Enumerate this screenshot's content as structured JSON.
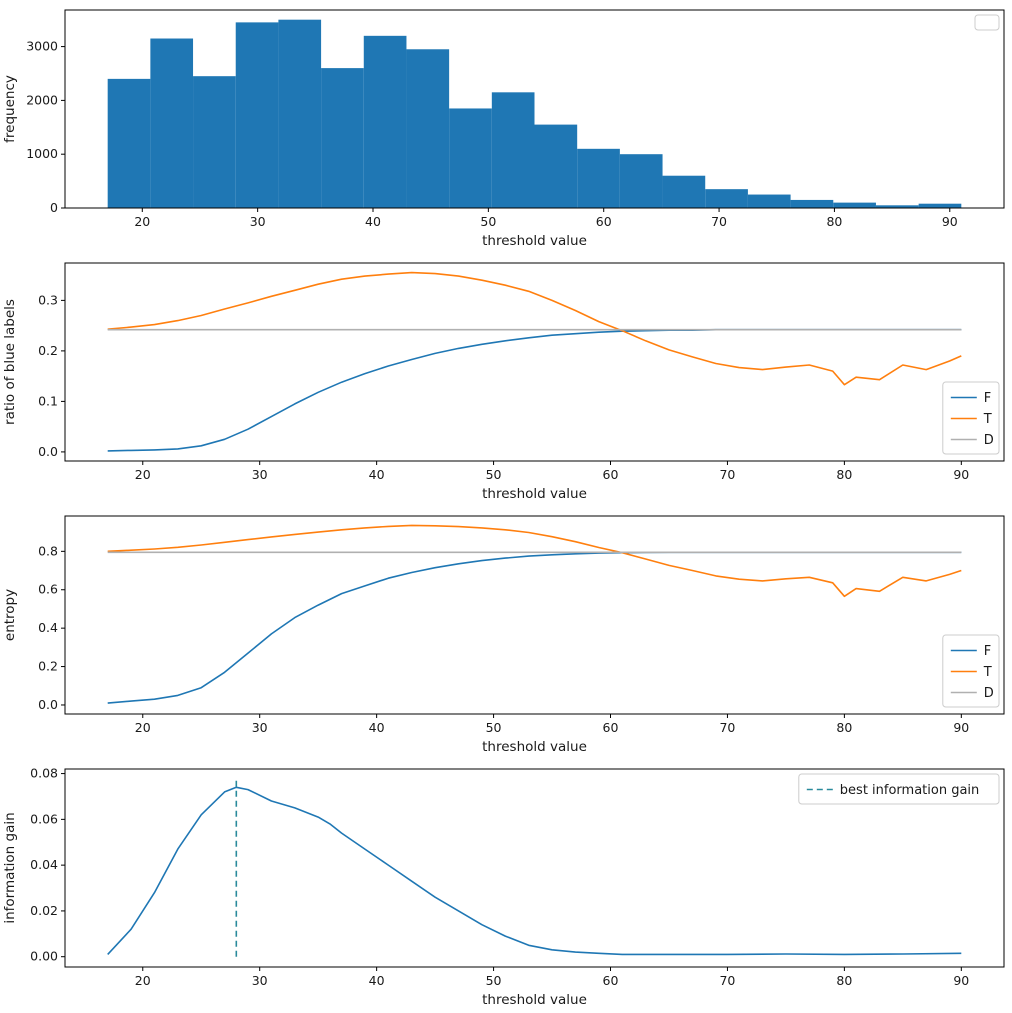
{
  "figure": {
    "background": "#ffffff"
  },
  "colors": {
    "blue": "#1f77b4",
    "orange": "#ff7f0e",
    "gray": "#b0b0b0",
    "teal": "#2a8a9c",
    "text": "#1a1a1a",
    "spine": "#000000",
    "legend_border": "#cccccc"
  },
  "chart_data": [
    {
      "type": "bar",
      "title": "",
      "xlabel": "threshold value",
      "ylabel": "frequency",
      "bin_start": 17,
      "bin_width": 3.7,
      "values": [
        2400,
        3150,
        2450,
        3450,
        3500,
        2600,
        3200,
        2950,
        1850,
        2150,
        1550,
        1100,
        1000,
        600,
        350,
        250,
        150,
        100,
        50,
        80
      ],
      "xlim": [
        13.3,
        94.7
      ],
      "ylim": [
        0,
        3680
      ],
      "xticks": [
        20,
        30,
        40,
        50,
        60,
        70,
        80,
        90
      ],
      "xtick_labels": [
        "20",
        "30",
        "40",
        "50",
        "60",
        "70",
        "80",
        "90"
      ],
      "yticks": [
        0,
        1000,
        2000,
        3000
      ],
      "ytick_labels": [
        "0",
        "1000",
        "2000",
        "3000"
      ],
      "bar_color_key": "blue",
      "legend": {
        "position": "upper-right",
        "entries": []
      },
      "grid": false
    },
    {
      "type": "line",
      "title": "",
      "xlabel": "threshold value",
      "ylabel": "ratio of blue labels",
      "xlim": [
        13.35,
        93.65
      ],
      "ylim": [
        -0.018,
        0.374
      ],
      "xticks": [
        20,
        30,
        40,
        50,
        60,
        70,
        80,
        90
      ],
      "xtick_labels": [
        "20",
        "30",
        "40",
        "50",
        "60",
        "70",
        "80",
        "90"
      ],
      "yticks": [
        0.0,
        0.1,
        0.2,
        0.3
      ],
      "ytick_labels": [
        "0.0",
        "0.1",
        "0.2",
        "0.3"
      ],
      "x": [
        17,
        19,
        21,
        23,
        25,
        27,
        29,
        31,
        33,
        35,
        37,
        39,
        41,
        43,
        45,
        47,
        49,
        51,
        53,
        55,
        57,
        59,
        61,
        63,
        65,
        67,
        69,
        71,
        73,
        75,
        77,
        79,
        80,
        81,
        83,
        85,
        87,
        89,
        90
      ],
      "series": [
        {
          "name": "F",
          "color_key": "blue",
          "values": [
            0.002,
            0.003,
            0.004,
            0.006,
            0.012,
            0.025,
            0.045,
            0.07,
            0.095,
            0.118,
            0.138,
            0.155,
            0.17,
            0.183,
            0.195,
            0.205,
            0.213,
            0.22,
            0.226,
            0.231,
            0.234,
            0.237,
            0.239,
            0.24,
            0.241,
            0.241,
            0.242,
            0.242,
            0.242,
            0.242,
            0.242,
            0.242,
            0.242,
            0.242,
            0.242,
            0.242,
            0.242,
            0.242,
            0.242
          ]
        },
        {
          "name": "T",
          "color_key": "orange",
          "values": [
            0.243,
            0.247,
            0.252,
            0.26,
            0.27,
            0.283,
            0.295,
            0.308,
            0.32,
            0.332,
            0.342,
            0.348,
            0.352,
            0.355,
            0.353,
            0.348,
            0.34,
            0.33,
            0.318,
            0.3,
            0.28,
            0.258,
            0.24,
            0.22,
            0.202,
            0.188,
            0.175,
            0.167,
            0.163,
            0.168,
            0.172,
            0.16,
            0.133,
            0.148,
            0.143,
            0.172,
            0.163,
            0.18,
            0.19
          ]
        },
        {
          "name": "D",
          "color_key": "gray",
          "x": [
            17,
            90
          ],
          "values": [
            0.242,
            0.242
          ]
        }
      ],
      "legend": {
        "position": "lower-right",
        "entries": [
          {
            "label": "F",
            "color_key": "blue"
          },
          {
            "label": "T",
            "color_key": "orange"
          },
          {
            "label": "D",
            "color_key": "gray"
          }
        ]
      },
      "grid": false
    },
    {
      "type": "line",
      "title": "",
      "xlabel": "threshold value",
      "ylabel": "entropy",
      "xlim": [
        13.35,
        93.65
      ],
      "ylim": [
        -0.047,
        0.984
      ],
      "xticks": [
        20,
        30,
        40,
        50,
        60,
        70,
        80,
        90
      ],
      "xtick_labels": [
        "20",
        "30",
        "40",
        "50",
        "60",
        "70",
        "80",
        "90"
      ],
      "yticks": [
        0.0,
        0.2,
        0.4,
        0.6,
        0.8
      ],
      "ytick_labels": [
        "0.0",
        "0.2",
        "0.4",
        "0.6",
        "0.8"
      ],
      "x": [
        17,
        19,
        21,
        23,
        25,
        27,
        29,
        31,
        33,
        35,
        37,
        39,
        41,
        43,
        45,
        47,
        49,
        51,
        53,
        55,
        57,
        59,
        61,
        63,
        65,
        67,
        69,
        71,
        73,
        75,
        77,
        79,
        80,
        81,
        83,
        85,
        87,
        89,
        90
      ],
      "series": [
        {
          "name": "F",
          "color_key": "blue",
          "values": [
            0.01,
            0.02,
            0.03,
            0.05,
            0.09,
            0.17,
            0.27,
            0.37,
            0.455,
            0.52,
            0.58,
            0.62,
            0.66,
            0.69,
            0.715,
            0.735,
            0.752,
            0.765,
            0.775,
            0.782,
            0.787,
            0.791,
            0.793,
            0.794,
            0.795,
            0.795,
            0.795,
            0.795,
            0.795,
            0.795,
            0.795,
            0.795,
            0.795,
            0.795,
            0.795,
            0.795,
            0.795,
            0.795,
            0.795
          ]
        },
        {
          "name": "T",
          "color_key": "orange",
          "values": [
            0.8,
            0.806,
            0.812,
            0.821,
            0.833,
            0.847,
            0.861,
            0.875,
            0.888,
            0.9,
            0.912,
            0.922,
            0.93,
            0.935,
            0.933,
            0.929,
            0.922,
            0.912,
            0.898,
            0.876,
            0.85,
            0.82,
            0.793,
            0.76,
            0.727,
            0.7,
            0.672,
            0.655,
            0.646,
            0.657,
            0.665,
            0.636,
            0.566,
            0.606,
            0.592,
            0.665,
            0.646,
            0.68,
            0.7
          ]
        },
        {
          "name": "D",
          "color_key": "gray",
          "x": [
            17,
            90
          ],
          "values": [
            0.795,
            0.795
          ]
        }
      ],
      "legend": {
        "position": "lower-right",
        "entries": [
          {
            "label": "F",
            "color_key": "blue"
          },
          {
            "label": "T",
            "color_key": "orange"
          },
          {
            "label": "D",
            "color_key": "gray"
          }
        ]
      },
      "grid": false
    },
    {
      "type": "line",
      "title": "",
      "xlabel": "threshold value",
      "ylabel": "information gain",
      "xlim": [
        13.35,
        93.65
      ],
      "ylim": [
        -0.0045,
        0.082
      ],
      "xticks": [
        20,
        30,
        40,
        50,
        60,
        70,
        80,
        90
      ],
      "xtick_labels": [
        "20",
        "30",
        "40",
        "50",
        "60",
        "70",
        "80",
        "90"
      ],
      "yticks": [
        0.0,
        0.02,
        0.04,
        0.06,
        0.08
      ],
      "ytick_labels": [
        "0.00",
        "0.02",
        "0.04",
        "0.06",
        "0.08"
      ],
      "x": [
        17,
        19,
        21,
        23,
        25,
        27,
        28,
        29,
        31,
        33,
        35,
        36,
        37,
        39,
        41,
        43,
        45,
        47,
        49,
        51,
        53,
        55,
        57,
        59,
        61,
        63,
        65,
        70,
        75,
        80,
        85,
        90
      ],
      "series": [
        {
          "name": "information gain",
          "color_key": "blue",
          "values": [
            0.001,
            0.012,
            0.028,
            0.047,
            0.062,
            0.072,
            0.074,
            0.073,
            0.068,
            0.065,
            0.061,
            0.058,
            0.054,
            0.047,
            0.04,
            0.033,
            0.026,
            0.02,
            0.014,
            0.009,
            0.005,
            0.003,
            0.002,
            0.0015,
            0.001,
            0.001,
            0.001,
            0.001,
            0.0012,
            0.001,
            0.0012,
            0.0015
          ]
        }
      ],
      "vline": {
        "x": 28,
        "y0": 0.0,
        "y1": 0.078,
        "color_key": "teal",
        "dash": true,
        "label": "best information gain"
      },
      "best_threshold": 28,
      "best_information_gain": 0.074,
      "legend": {
        "position": "upper-right",
        "entries": [
          {
            "label": "best information gain",
            "color_key": "teal",
            "dash": true
          }
        ]
      },
      "grid": false
    }
  ]
}
